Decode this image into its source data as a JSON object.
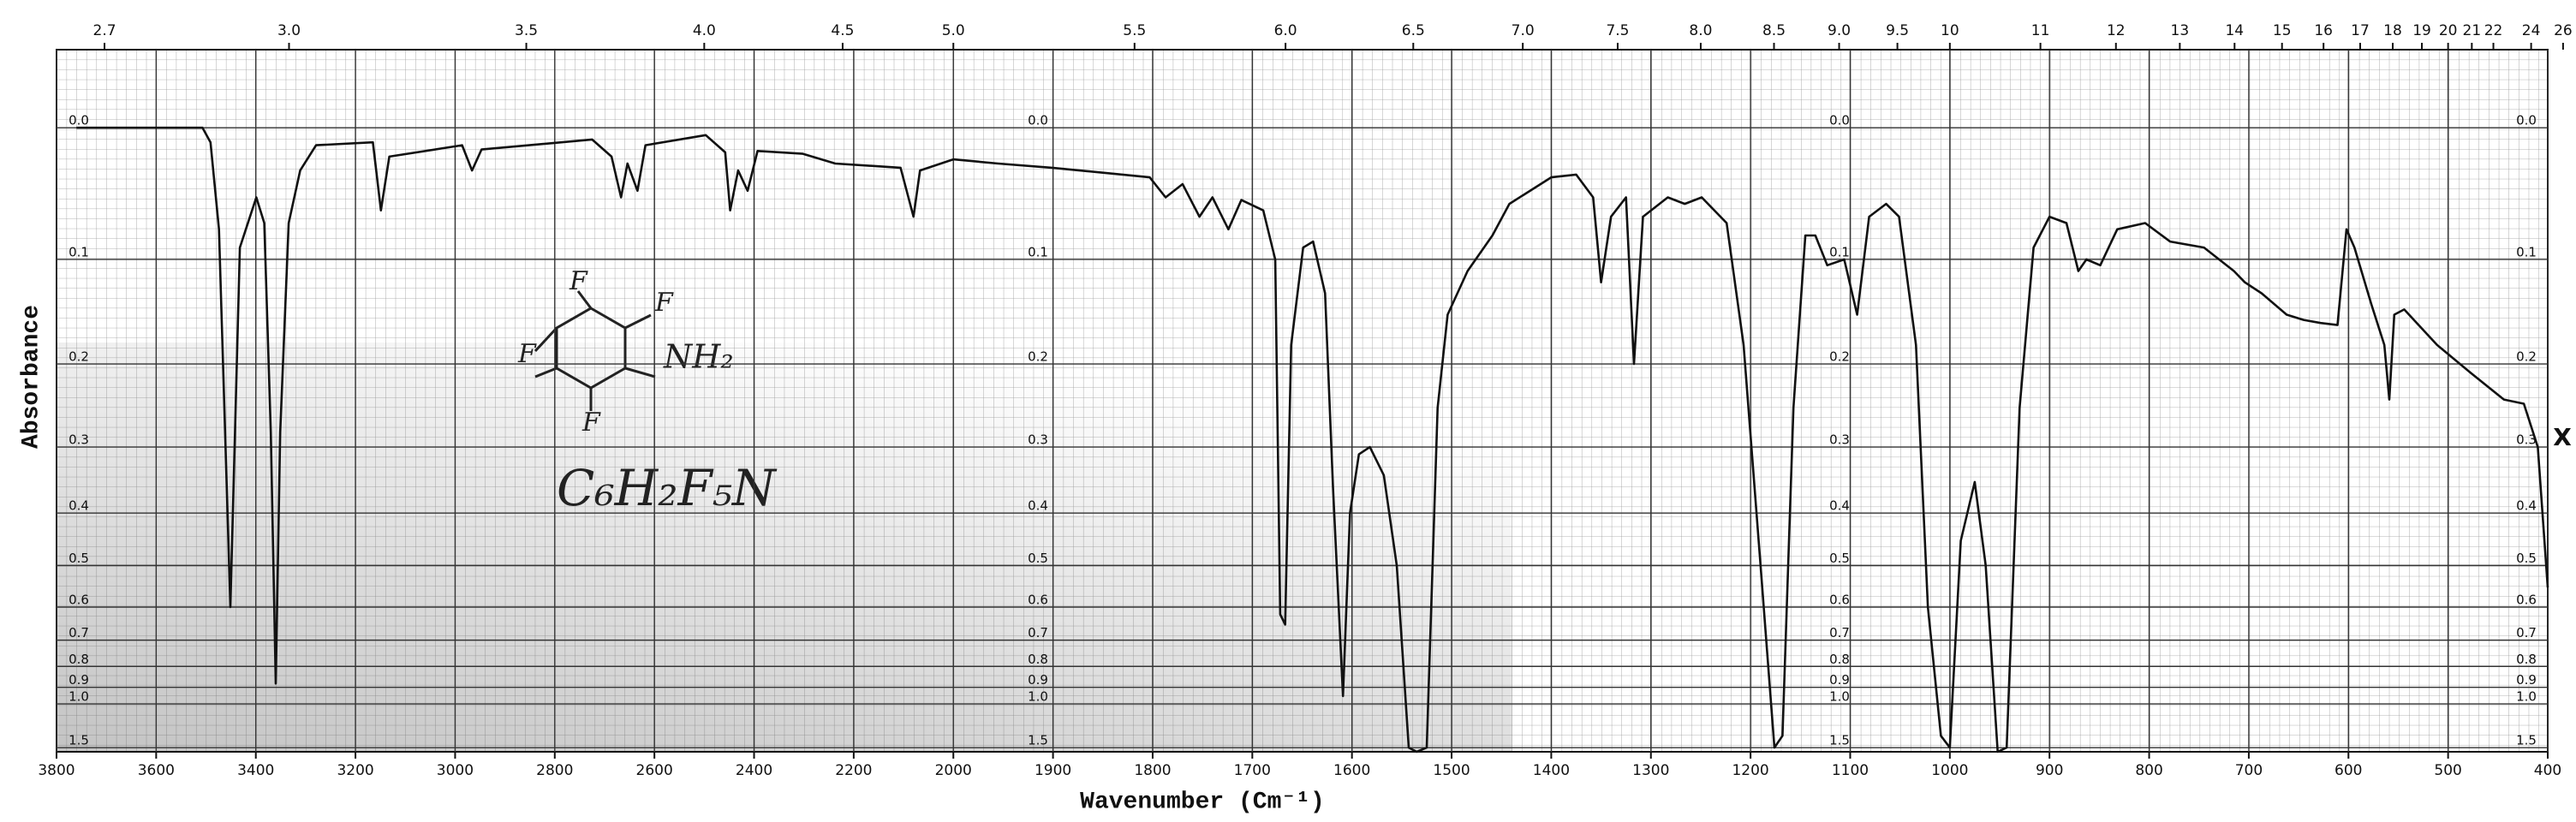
{
  "chart_data": {
    "type": "line",
    "ylabel": "Absorbance",
    "xlabel": "Wavenumber (Cm⁻¹)",
    "annotations": [
      "C₆H₂F₅N",
      "X"
    ],
    "structure_labels": [
      "F",
      "F",
      "F",
      "F",
      "NH₂"
    ],
    "color": "#111111",
    "grid": true,
    "xscale": "piecewise",
    "yscale": "transmittance",
    "x2scale": "reciprocal",
    "xlim": [
      3800,
      400
    ],
    "ylim": [
      -0.05,
      1.6
    ],
    "xticks": [
      3800,
      3600,
      3400,
      3200,
      3000,
      2800,
      2600,
      2400,
      2200,
      2000,
      1900,
      1800,
      1700,
      1600,
      1500,
      1400,
      1300,
      1200,
      1100,
      1000,
      900,
      800,
      700,
      600,
      500,
      400
    ],
    "yticks": [
      {
        "value": 0,
        "label": "0.0"
      },
      0.1,
      0.2,
      0.3,
      0.4,
      0.5,
      0.6,
      0.7,
      0.8,
      0.9,
      {
        "value": 1,
        "label": "1.0"
      },
      1.5
    ],
    "x2ticks": [
      2.7,
      {
        "value": 3,
        "label": "3.0"
      },
      3.5,
      {
        "value": 4,
        "label": "4.0"
      },
      4.5,
      {
        "value": 5,
        "label": "5.0"
      },
      5.5,
      {
        "value": 6,
        "label": "6.0"
      },
      6.5,
      {
        "value": 7,
        "label": "7.0"
      },
      7.5,
      {
        "value": 8,
        "label": "8.0"
      },
      8.5,
      {
        "value": 9,
        "label": "9.0"
      },
      9.5,
      10,
      11,
      12,
      13,
      14,
      15,
      16,
      17,
      18,
      19,
      20,
      21,
      22,
      24,
      26
    ],
    "x": [
      3760,
      3507,
      3491,
      3474,
      3451,
      3432,
      3399,
      3383,
      3370,
      3360,
      3351,
      3334,
      3311,
      3279,
      3165,
      3149,
      3132,
      2986,
      2966,
      2947,
      2725,
      2686,
      2667,
      2654,
      2634,
      2618,
      2497,
      2458,
      2448,
      2432,
      2413,
      2393,
      2302,
      2237,
      2106,
      2080,
      2067,
      2000,
      1955,
      1901,
      1803,
      1787,
      1770,
      1753,
      1740,
      1724,
      1711,
      1689,
      1677,
      1672,
      1667,
      1661,
      1649,
      1639,
      1627,
      1619,
      1609,
      1602,
      1593,
      1582,
      1568,
      1555,
      1543,
      1535,
      1525,
      1514,
      1504,
      1484,
      1459,
      1442,
      1400,
      1375,
      1358,
      1350,
      1340,
      1325,
      1317,
      1308,
      1283,
      1266,
      1249,
      1224,
      1207,
      1190,
      1176,
      1168,
      1157,
      1145,
      1135,
      1123,
      1106,
      1093,
      1081,
      1064,
      1051,
      1034,
      1022,
      1009,
      1000,
      989,
      975,
      964,
      952,
      943,
      930,
      916,
      900,
      883,
      871,
      863,
      849,
      832,
      804,
      779,
      745,
      715,
      704,
      687,
      662,
      645,
      628,
      611,
      602,
      594,
      577,
      564,
      559,
      554,
      544,
      511,
      477,
      444,
      424,
      410,
      400
    ],
    "values": [
      0.0,
      0.0,
      0.01,
      0.075,
      0.6,
      0.09,
      0.05,
      0.07,
      0.28,
      0.88,
      0.28,
      0.07,
      0.03,
      0.012,
      0.01,
      0.06,
      0.02,
      0.012,
      0.03,
      0.015,
      0.008,
      0.02,
      0.05,
      0.025,
      0.045,
      0.012,
      0.005,
      0.017,
      0.06,
      0.03,
      0.045,
      0.016,
      0.018,
      0.025,
      0.028,
      0.065,
      0.03,
      0.022,
      0.025,
      0.028,
      0.035,
      0.05,
      0.04,
      0.065,
      0.05,
      0.075,
      0.052,
      0.06,
      0.1,
      0.62,
      0.65,
      0.18,
      0.09,
      0.085,
      0.13,
      0.36,
      0.95,
      0.4,
      0.31,
      0.3,
      0.34,
      0.5,
      1.5,
      1.6,
      1.5,
      0.25,
      0.15,
      0.11,
      0.08,
      0.055,
      0.035,
      0.033,
      0.05,
      0.12,
      0.065,
      0.05,
      0.2,
      0.065,
      0.05,
      0.055,
      0.05,
      0.07,
      0.18,
      0.5,
      1.5,
      1.3,
      0.25,
      0.08,
      0.08,
      0.105,
      0.1,
      0.15,
      0.065,
      0.055,
      0.065,
      0.18,
      0.6,
      1.3,
      1.5,
      0.45,
      0.35,
      0.5,
      1.6,
      1.5,
      0.25,
      0.09,
      0.065,
      0.07,
      0.11,
      0.1,
      0.105,
      0.075,
      0.07,
      0.085,
      0.09,
      0.11,
      0.12,
      0.13,
      0.15,
      0.155,
      0.158,
      0.16,
      0.075,
      0.09,
      0.14,
      0.18,
      0.24,
      0.15,
      0.145,
      0.18,
      0.21,
      0.24,
      0.245,
      0.3,
      0.55
    ]
  }
}
